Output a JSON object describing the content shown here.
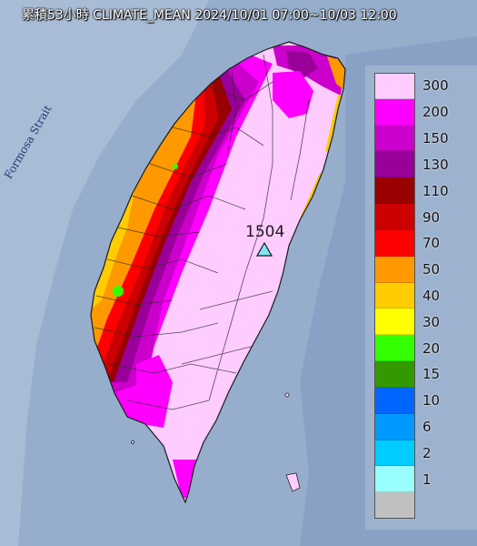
{
  "title": "累積53小時 CLIMATE_MEAN 2024/10/01 07:00~10/03 12:00",
  "strait_label": "Formosa Strait",
  "peak": {
    "value": "1504",
    "marker_color": "#7fe6f2"
  },
  "legend": [
    {
      "label": "300",
      "color": "#ffccff"
    },
    {
      "label": "200",
      "color": "#ff00ff"
    },
    {
      "label": "150",
      "color": "#cc00cc"
    },
    {
      "label": "130",
      "color": "#990099"
    },
    {
      "label": "110",
      "color": "#990000"
    },
    {
      "label": "90",
      "color": "#cc0000"
    },
    {
      "label": "70",
      "color": "#ff0000"
    },
    {
      "label": "50",
      "color": "#ff9900"
    },
    {
      "label": "40",
      "color": "#ffcc00"
    },
    {
      "label": "30",
      "color": "#ffff00"
    },
    {
      "label": "20",
      "color": "#33ff00"
    },
    {
      "label": "15",
      "color": "#339900"
    },
    {
      "label": "10",
      "color": "#0066ff"
    },
    {
      "label": "6",
      "color": "#0099ff"
    },
    {
      "label": "2",
      "color": "#00ccff"
    },
    {
      "label": "1",
      "color": "#99ffff"
    },
    {
      "label": "",
      "color": "#c0c0c0"
    }
  ]
}
